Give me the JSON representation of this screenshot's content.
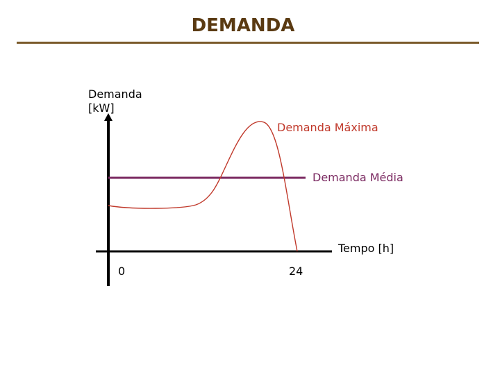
{
  "title": "DEMANDA",
  "axes": {
    "y_label_line1": "Demanda",
    "y_label_line2": "[kW]",
    "x_label": "Tempo [h]",
    "x_tick_start": "0",
    "x_tick_end": "24"
  },
  "labels": {
    "max_demand": "Demanda Máxima",
    "avg_demand": "Demanda Média"
  },
  "colors": {
    "title": "#5a3a12",
    "title_rule": "#7a5a2a",
    "curve": "#c0392b",
    "average_line": "#7a2860",
    "axes": "#000000"
  }
}
